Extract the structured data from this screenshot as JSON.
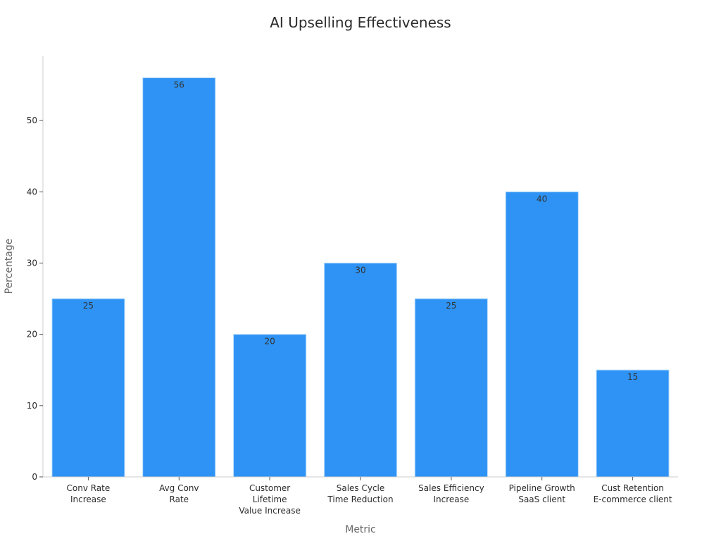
{
  "chart_data": {
    "type": "bar",
    "title": "AI Upselling Effectiveness",
    "xlabel": "Metric",
    "ylabel": "Percentage",
    "categories": [
      [
        "Conv Rate",
        "Increase"
      ],
      [
        "Avg Conv",
        "Rate"
      ],
      [
        "Customer",
        "Lifetime",
        "Value Increase"
      ],
      [
        "Sales Cycle",
        "Time Reduction"
      ],
      [
        "Sales Efficiency",
        "Increase"
      ],
      [
        "Pipeline Growth",
        "SaaS client"
      ],
      [
        "Cust Retention",
        "E-commerce client"
      ]
    ],
    "values": [
      25,
      56,
      20,
      30,
      25,
      40,
      15
    ],
    "ylim": [
      0,
      59
    ],
    "yticks": [
      0,
      10,
      20,
      30,
      40,
      50
    ],
    "grid": false,
    "legend": "none",
    "bar_color": "#2e93f5",
    "bar_edge_color": "#b9dcfb"
  }
}
